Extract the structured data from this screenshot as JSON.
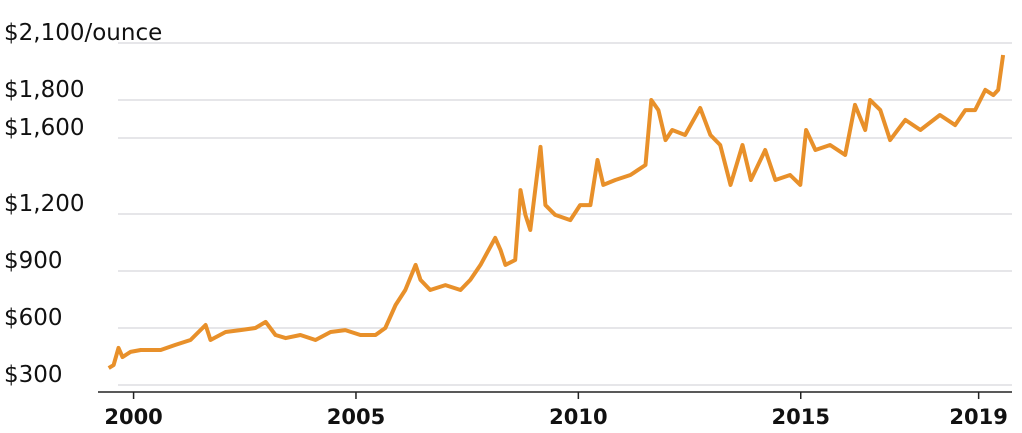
{
  "chart_data": {
    "type": "line",
    "x": [
      1999.44,
      1999.55,
      1999.66,
      1999.75,
      1999.93,
      2000.16,
      2000.61,
      2000.94,
      2001.28,
      2001.62,
      2001.73,
      2002.07,
      2002.4,
      2002.74,
      2002.97,
      2003.19,
      2003.42,
      2003.75,
      2004.09,
      2004.43,
      2004.76,
      2005.1,
      2005.44,
      2005.66,
      2005.89,
      2006.11,
      2006.34,
      2006.45,
      2006.67,
      2007.01,
      2007.35,
      2007.57,
      2007.8,
      2008.13,
      2008.25,
      2008.36,
      2008.58,
      2008.7,
      2008.81,
      2008.92,
      2009.15,
      2009.26,
      2009.48,
      2009.82,
      2010.04,
      2010.27,
      2010.43,
      2010.56,
      2010.83,
      2011.17,
      2011.51,
      2011.64,
      2011.8,
      2011.96,
      2012.11,
      2012.4,
      2012.74,
      2012.97,
      2013.19,
      2013.42,
      2013.69,
      2013.88,
      2014.2,
      2014.43,
      2014.76,
      2014.99,
      2015.12,
      2015.33,
      2015.66,
      2016.0,
      2016.22,
      2016.45,
      2016.56,
      2016.79,
      2017.01,
      2017.35,
      2017.69,
      2018.13,
      2018.47,
      2018.7,
      2018.92,
      2019.15,
      2019.33,
      2019.44,
      2019.55
    ],
    "series": [
      {
        "color": "#e8902a",
        "values": [
          389,
          405,
          495,
          447,
          474,
          484,
          484,
          511,
          537,
          616,
          537,
          579,
          589,
          600,
          632,
          563,
          547,
          563,
          537,
          579,
          589,
          563,
          563,
          600,
          721,
          800,
          932,
          853,
          800,
          826,
          800,
          853,
          932,
          1074,
          1011,
          932,
          958,
          1326,
          1195,
          1116,
          1553,
          1247,
          1195,
          1168,
          1247,
          1247,
          1484,
          1353,
          1379,
          1405,
          1458,
          1800,
          1747,
          1589,
          1642,
          1616,
          1758,
          1616,
          1563,
          1353,
          1563,
          1379,
          1537,
          1379,
          1405,
          1353,
          1642,
          1537,
          1563,
          1511,
          1774,
          1642,
          1800,
          1747,
          1589,
          1695,
          1642,
          1721,
          1668,
          1747,
          1747,
          1853,
          1826,
          1853,
          2037
        ]
      }
    ],
    "xlim": [
      1999.2,
      2019.75
    ],
    "xticks": [
      2000,
      2005,
      2010,
      2015,
      2019
    ],
    "ylim": [
      300,
      2100
    ],
    "yticks": [
      {
        "value": 300,
        "label": "$300"
      },
      {
        "value": 600,
        "label": "$600"
      },
      {
        "value": 900,
        "label": "$900"
      },
      {
        "value": 1200,
        "label": "$1,200"
      },
      {
        "value": 1600,
        "label": "$1,600"
      },
      {
        "value": 1800,
        "label": "$1,800"
      },
      {
        "value": 2100,
        "label": "$2,100/ounce"
      }
    ],
    "grid": true
  }
}
